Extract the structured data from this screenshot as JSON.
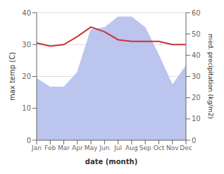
{
  "chart_data": {
    "type": "line",
    "categories": [
      "Jan",
      "Feb",
      "Mar",
      "Apr",
      "May",
      "Jun",
      "Jul",
      "Aug",
      "Sep",
      "Oct",
      "Nov",
      "Dec"
    ],
    "series": [
      {
        "type": "area",
        "axis": "y2",
        "color": "#bbc5ee",
        "values": [
          29,
          25,
          25,
          32,
          52,
          53,
          58,
          58,
          53,
          40,
          26,
          35
        ]
      },
      {
        "type": "line",
        "axis": "y",
        "color": "#cc3333",
        "values": [
          30.5,
          29.5,
          30.0,
          32.5,
          35.5,
          34.0,
          31.5,
          31.0,
          31.0,
          31.0,
          30.0,
          30.0
        ]
      }
    ],
    "xlabel": "date (month)",
    "ylabel": "max temp (C)",
    "y2label": "med. precipitation (kg/m2)",
    "ylim": [
      0,
      40
    ],
    "yticks": [
      0,
      10,
      20,
      30,
      40
    ],
    "y2lim": [
      0,
      60
    ],
    "y2ticks": [
      0,
      10,
      20,
      30,
      40,
      50,
      60
    ],
    "grid": true
  }
}
